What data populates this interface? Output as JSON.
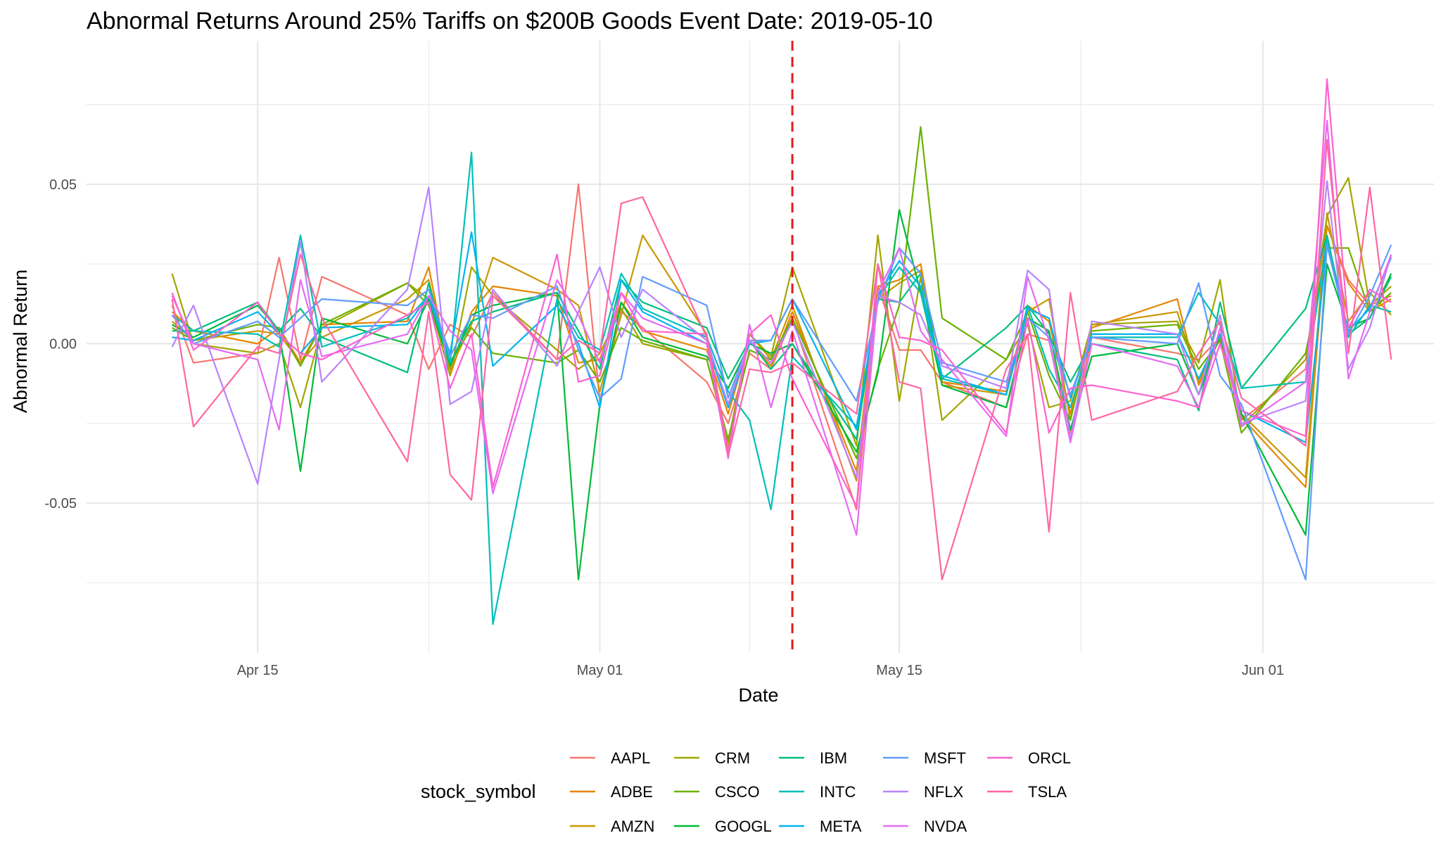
{
  "chart_data": {
    "type": "line",
    "title": "Abnormal Returns Around 25% Tariffs on $200B Goods Event Date: 2019-05-10",
    "xlabel": "Date",
    "ylabel": "Abnormal Return",
    "event_date": "2019-05-10",
    "event_line_color": "#e41a1c",
    "grid": true,
    "legend": {
      "title": "stock_symbol",
      "position": "bottom"
    },
    "xlim": [
      "2019-04-07",
      "2019-06-09"
    ],
    "ylim": [
      -0.097,
      0.095
    ],
    "x_ticks": [
      {
        "date": "2019-04-15",
        "label": "Apr 15"
      },
      {
        "date": "2019-05-01",
        "label": "May 01"
      },
      {
        "date": "2019-05-15",
        "label": "May 15"
      },
      {
        "date": "2019-06-01",
        "label": "Jun 01"
      }
    ],
    "y_ticks": [
      {
        "value": -0.05,
        "label": "-0.05"
      },
      {
        "value": 0,
        "label": "0.00"
      },
      {
        "value": 0.05,
        "label": "0.05"
      }
    ],
    "x": [
      "2019-04-11",
      "2019-04-12",
      "2019-04-15",
      "2019-04-16",
      "2019-04-17",
      "2019-04-18",
      "2019-04-22",
      "2019-04-23",
      "2019-04-24",
      "2019-04-25",
      "2019-04-26",
      "2019-04-29",
      "2019-04-30",
      "2019-05-01",
      "2019-05-02",
      "2019-05-03",
      "2019-05-06",
      "2019-05-07",
      "2019-05-08",
      "2019-05-09",
      "2019-05-10",
      "2019-05-13",
      "2019-05-14",
      "2019-05-15",
      "2019-05-16",
      "2019-05-17",
      "2019-05-20",
      "2019-05-21",
      "2019-05-22",
      "2019-05-23",
      "2019-05-24",
      "2019-05-28",
      "2019-05-29",
      "2019-05-30",
      "2019-05-31",
      "2019-06-03",
      "2019-06-04",
      "2019-06-05",
      "2019-06-06",
      "2019-06-07"
    ],
    "series": [
      {
        "name": "AAPL",
        "color": "#F8766D",
        "values": [
          0.012,
          -0.006,
          -0.003,
          0.027,
          -0.005,
          0.021,
          0.009,
          -0.008,
          0.006,
          0.002,
          0.016,
          -0.005,
          0.05,
          -0.018,
          0.01,
          0.005,
          -0.012,
          -0.025,
          -0.003,
          -0.008,
          0.008,
          -0.052,
          0.018,
          -0.002,
          -0.002,
          -0.012,
          -0.02,
          0.003,
          0.001,
          -0.028,
          0.002,
          -0.003,
          -0.005,
          0.002,
          -0.024,
          -0.008,
          0.037,
          0.02,
          0.012,
          0.015
        ]
      },
      {
        "name": "ADBE",
        "color": "#E58700",
        "values": [
          0.01,
          0.004,
          0.0,
          0.005,
          -0.006,
          0.006,
          0.007,
          0.024,
          -0.01,
          0.01,
          0.018,
          0.015,
          -0.006,
          -0.005,
          0.013,
          0.004,
          -0.002,
          -0.022,
          0.001,
          -0.007,
          0.01,
          -0.04,
          0.018,
          0.02,
          0.025,
          -0.012,
          -0.015,
          0.012,
          0.007,
          -0.022,
          0.005,
          0.014,
          -0.013,
          0.002,
          -0.023,
          -0.045,
          0.037,
          0.019,
          0.01,
          0.014
        ]
      },
      {
        "name": "AMZN",
        "color": "#C99800",
        "values": [
          0.007,
          0.001,
          0.004,
          0.003,
          -0.006,
          0.002,
          0.014,
          0.02,
          -0.008,
          0.006,
          0.027,
          0.017,
          0.012,
          -0.015,
          0.009,
          0.034,
          0.003,
          -0.033,
          0.003,
          -0.005,
          0.012,
          -0.043,
          0.014,
          0.019,
          0.023,
          -0.013,
          -0.016,
          0.01,
          0.014,
          -0.024,
          0.006,
          0.01,
          -0.012,
          0.003,
          -0.022,
          -0.042,
          0.041,
          0.007,
          0.016,
          0.009
        ]
      },
      {
        "name": "CRM",
        "color": "#A3A500",
        "values": [
          0.022,
          0.0,
          -0.003,
          0.0,
          -0.02,
          0.005,
          0.019,
          0.014,
          -0.01,
          0.024,
          0.015,
          -0.002,
          -0.008,
          -0.003,
          0.011,
          0.0,
          -0.005,
          -0.031,
          0.003,
          -0.004,
          0.024,
          -0.032,
          0.034,
          -0.018,
          0.021,
          -0.024,
          -0.005,
          0.006,
          -0.02,
          -0.018,
          0.006,
          0.007,
          -0.006,
          0.02,
          -0.026,
          -0.005,
          0.04,
          0.052,
          0.012,
          0.018
        ]
      },
      {
        "name": "CSCO",
        "color": "#6BB100",
        "values": [
          0.005,
          0.001,
          0.006,
          0.005,
          -0.007,
          0.006,
          0.019,
          0.012,
          -0.006,
          0.005,
          -0.003,
          -0.006,
          -0.002,
          -0.012,
          0.005,
          0.001,
          -0.005,
          -0.03,
          -0.002,
          -0.005,
          0.008,
          -0.036,
          -0.008,
          0.012,
          0.068,
          0.008,
          -0.005,
          0.01,
          -0.01,
          -0.024,
          0.004,
          0.006,
          -0.008,
          0.001,
          -0.028,
          -0.003,
          0.03,
          0.03,
          0.01,
          0.016
        ]
      },
      {
        "name": "GOOGL",
        "color": "#00BA38",
        "values": [
          0.006,
          0.002,
          0.012,
          0.004,
          -0.04,
          0.008,
          0.0,
          0.014,
          -0.007,
          0.009,
          0.012,
          0.016,
          -0.074,
          -0.019,
          0.013,
          0.002,
          -0.004,
          -0.014,
          0.0,
          -0.003,
          0.0,
          -0.034,
          -0.009,
          0.042,
          0.016,
          -0.013,
          -0.02,
          0.008,
          0.004,
          -0.027,
          -0.004,
          0.0,
          -0.016,
          0.003,
          -0.022,
          -0.06,
          0.025,
          0.005,
          0.008,
          0.022
        ]
      },
      {
        "name": "IBM",
        "color": "#00BF7D",
        "values": [
          0.004,
          0.004,
          0.013,
          0.004,
          0.011,
          0.002,
          -0.009,
          0.019,
          -0.006,
          0.007,
          0.01,
          0.016,
          0.004,
          -0.008,
          0.02,
          0.013,
          0.005,
          -0.011,
          0.001,
          -0.008,
          0.0,
          -0.03,
          0.014,
          0.013,
          0.022,
          -0.011,
          0.005,
          0.012,
          0.003,
          -0.012,
          0.0,
          -0.005,
          -0.021,
          0.013,
          -0.014,
          0.011,
          0.034,
          0.003,
          0.008,
          0.021
        ]
      },
      {
        "name": "INTC",
        "color": "#00C0B8",
        "values": [
          0.009,
          0.004,
          0.003,
          -0.001,
          0.034,
          -0.001,
          0.008,
          0.015,
          -0.006,
          0.06,
          -0.088,
          0.014,
          0.002,
          -0.002,
          0.022,
          0.011,
          0.002,
          -0.015,
          -0.024,
          -0.052,
          -0.004,
          -0.026,
          0.014,
          0.024,
          0.016,
          -0.011,
          -0.016,
          0.012,
          -0.008,
          -0.02,
          0.002,
          0.002,
          0.016,
          0.006,
          -0.014,
          -0.012,
          0.033,
          0.002,
          0.012,
          0.01
        ]
      },
      {
        "name": "META",
        "color": "#00B4EF",
        "values": [
          0.002,
          0.001,
          0.01,
          0.003,
          -0.003,
          0.005,
          0.006,
          0.015,
          -0.003,
          0.035,
          -0.007,
          0.012,
          0.0,
          -0.02,
          0.02,
          0.01,
          0.0,
          -0.02,
          0.0,
          0.001,
          0.014,
          -0.027,
          0.015,
          0.026,
          0.018,
          -0.01,
          -0.016,
          0.011,
          0.008,
          -0.017,
          0.003,
          0.003,
          -0.011,
          0.003,
          -0.021,
          -0.031,
          0.031,
          0.004,
          0.011,
          0.027
        ]
      },
      {
        "name": "MSFT",
        "color": "#619CFF",
        "values": [
          0.009,
          0.0,
          0.007,
          0.002,
          0.008,
          0.014,
          0.012,
          0.017,
          -0.004,
          0.009,
          0.008,
          0.018,
          -0.002,
          -0.017,
          -0.011,
          0.021,
          0.012,
          -0.017,
          0.001,
          0.001,
          0.014,
          -0.018,
          0.013,
          0.03,
          0.022,
          -0.006,
          -0.012,
          0.008,
          0.002,
          -0.016,
          0.002,
          0.0,
          0.019,
          -0.01,
          -0.019,
          -0.074,
          0.031,
          0.003,
          0.015,
          0.031
        ]
      },
      {
        "name": "NFLX",
        "color": "#B983FF",
        "values": [
          -0.001,
          0.012,
          -0.044,
          -0.005,
          0.032,
          -0.012,
          0.017,
          0.049,
          -0.019,
          -0.015,
          0.017,
          -0.007,
          0.01,
          0.024,
          0.002,
          0.017,
          0.001,
          -0.019,
          0.001,
          -0.006,
          0.007,
          -0.042,
          0.015,
          0.013,
          0.009,
          -0.007,
          -0.014,
          0.023,
          0.017,
          -0.03,
          0.007,
          0.003,
          -0.016,
          0.009,
          -0.025,
          -0.018,
          0.051,
          -0.008,
          0.005,
          0.028
        ]
      },
      {
        "name": "NVDA",
        "color": "#E76BF3",
        "values": [
          0.015,
          0.0,
          -0.005,
          -0.027,
          0.02,
          -0.004,
          0.003,
          0.015,
          0.004,
          -0.002,
          -0.047,
          0.02,
          0.009,
          -0.006,
          0.016,
          0.008,
          0.0,
          -0.036,
          0.006,
          -0.02,
          0.004,
          -0.06,
          0.016,
          0.03,
          0.004,
          -0.005,
          -0.029,
          0.021,
          0.001,
          -0.031,
          0.0,
          -0.007,
          -0.02,
          0.005,
          -0.026,
          -0.012,
          0.07,
          -0.011,
          0.01,
          0.028
        ]
      },
      {
        "name": "ORCL",
        "color": "#FD61D1",
        "values": [
          0.016,
          -0.002,
          0.013,
          0.003,
          -0.003,
          -0.005,
          0.009,
          0.013,
          -0.014,
          0.003,
          -0.045,
          0.028,
          -0.012,
          -0.01,
          0.016,
          0.004,
          0.003,
          -0.034,
          0.003,
          0.009,
          -0.011,
          -0.051,
          0.025,
          0.002,
          0.001,
          -0.002,
          -0.028,
          0.008,
          -0.028,
          -0.014,
          -0.013,
          -0.018,
          -0.02,
          0.0,
          -0.021,
          -0.029,
          0.083,
          0.005,
          0.017,
          0.013
        ]
      },
      {
        "name": "TSLA",
        "color": "#FF67A4",
        "values": [
          0.014,
          -0.026,
          -0.001,
          -0.003,
          0.028,
          0.008,
          -0.037,
          0.01,
          -0.041,
          -0.049,
          0.015,
          -0.005,
          0.001,
          -0.003,
          0.044,
          0.046,
          0.002,
          -0.035,
          -0.008,
          -0.009,
          -0.006,
          -0.022,
          0.025,
          -0.012,
          -0.014,
          -0.074,
          -0.008,
          0.003,
          -0.059,
          0.016,
          -0.024,
          -0.015,
          -0.003,
          0.007,
          -0.017,
          -0.032,
          0.064,
          -0.003,
          0.049,
          -0.005
        ]
      }
    ]
  }
}
